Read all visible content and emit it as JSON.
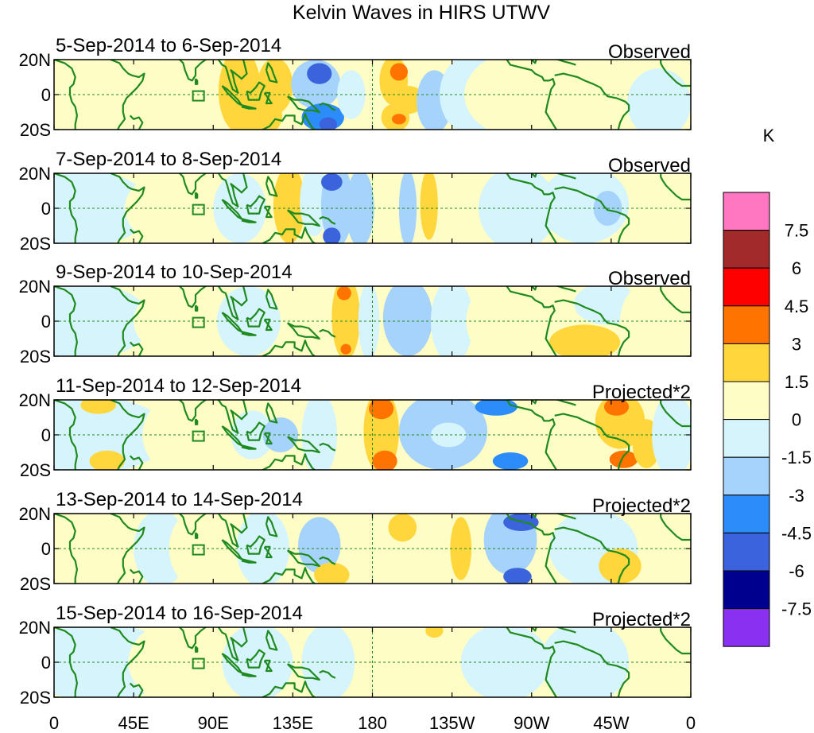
{
  "chart_data": {
    "type": "heatmap",
    "title": "Kelvin Waves in HIRS UTWV",
    "colorbar": {
      "unit": "K",
      "tick_labels": [
        "7.5",
        "6",
        "4.5",
        "3",
        "1.5",
        "0",
        "-1.5",
        "-3",
        "-4.5",
        "-6",
        "-7.5"
      ],
      "colors_top_to_bottom": [
        "#ff77c0",
        "#a32a2a",
        "#ff0000",
        "#ff7300",
        "#ffd63b",
        "#fffdc6",
        "#d6f4fb",
        "#a6d3fc",
        "#2b8cfa",
        "#3b64dc",
        "#00008e",
        "#8a30f0"
      ],
      "levels_top_to_bottom": [
        9,
        7.5,
        6,
        4.5,
        3,
        1.5,
        0,
        -1.5,
        -3,
        -4.5,
        -6,
        -7.5,
        -9
      ]
    },
    "x_tick_labels": [
      "0",
      "45E",
      "90E",
      "135E",
      "180",
      "135W",
      "90W",
      "45W",
      "0"
    ],
    "x_tick_longitudes": [
      0,
      45,
      90,
      135,
      180,
      225,
      270,
      315,
      360
    ],
    "y_tick_labels": [
      "20N",
      "0",
      "20S"
    ],
    "y_tick_latitudes": [
      20,
      0,
      -20
    ],
    "panels": [
      {
        "date_range": "5-Sep-2014 to 6-Sep-2014",
        "label": "Observed",
        "anomalies": [
          {
            "lon": 12,
            "lat": 0,
            "rlon": 40,
            "rlat": 22,
            "value": 0.9
          },
          {
            "lon": 75,
            "lat": 2,
            "rlon": 28,
            "rlat": 20,
            "value": 0.7
          },
          {
            "lon": 105,
            "lat": 2,
            "rlon": 12,
            "rlat": 24,
            "value": 2.0
          },
          {
            "lon": 125,
            "lat": 5,
            "rlon": 10,
            "rlat": 16,
            "value": 2.2
          },
          {
            "lon": 117,
            "lat": -12,
            "rlon": 12,
            "rlat": 12,
            "value": 1.8
          },
          {
            "lon": 148,
            "lat": 6,
            "rlon": 14,
            "rlat": 14,
            "value": -2.0
          },
          {
            "lon": 150,
            "lat": 12,
            "rlon": 7,
            "rlat": 6,
            "value": -4.6
          },
          {
            "lon": 152,
            "lat": -13,
            "rlon": 12,
            "rlat": 8,
            "value": -3.5
          },
          {
            "lon": 155,
            "lat": -17,
            "rlon": 5,
            "rlat": 4,
            "value": -4.6
          },
          {
            "lon": 168,
            "lat": 0,
            "rlon": 8,
            "rlat": 14,
            "value": -1.0
          },
          {
            "lon": 183,
            "lat": 2,
            "rlon": 6,
            "rlat": 24,
            "value": 1.2
          },
          {
            "lon": 192,
            "lat": 8,
            "rlon": 8,
            "rlat": 14,
            "value": 2.2
          },
          {
            "lon": 195,
            "lat": 13,
            "rlon": 5,
            "rlat": 5,
            "value": 3.5
          },
          {
            "lon": 193,
            "lat": -13,
            "rlon": 8,
            "rlat": 8,
            "value": 2.4
          },
          {
            "lon": 195,
            "lat": -14,
            "rlon": 4,
            "rlat": 3,
            "value": 3.5
          },
          {
            "lon": 200,
            "lat": -3,
            "rlon": 10,
            "rlat": 8,
            "value": 1.6
          },
          {
            "lon": 215,
            "lat": -4,
            "rlon": 10,
            "rlat": 18,
            "value": -1.7
          },
          {
            "lon": 238,
            "lat": 0,
            "rlon": 20,
            "rlat": 24,
            "value": -1.0
          },
          {
            "lon": 262,
            "lat": 0,
            "rlon": 30,
            "rlat": 24,
            "value": 0.8
          },
          {
            "lon": 300,
            "lat": 0,
            "rlon": 30,
            "rlat": 24,
            "value": 0.9
          },
          {
            "lon": 342,
            "lat": -5,
            "rlon": 18,
            "rlat": 20,
            "value": -0.8
          }
        ]
      },
      {
        "date_range": "7-Sep-2014 to 8-Sep-2014",
        "label": "Observed",
        "anomalies": [
          {
            "lon": 15,
            "lat": 0,
            "rlon": 40,
            "rlat": 22,
            "value": -0.8
          },
          {
            "lon": 70,
            "lat": 0,
            "rlon": 30,
            "rlat": 22,
            "value": 0.8
          },
          {
            "lon": 105,
            "lat": 0,
            "rlon": 15,
            "rlat": 20,
            "value": -0.9
          },
          {
            "lon": 133,
            "lat": 2,
            "rlon": 9,
            "rlat": 22,
            "value": 2.0
          },
          {
            "lon": 147,
            "lat": 4,
            "rlon": 8,
            "rlat": 20,
            "value": -0.9
          },
          {
            "lon": 160,
            "lat": 2,
            "rlon": 9,
            "rlat": 24,
            "value": -2.0
          },
          {
            "lon": 157,
            "lat": 15,
            "rlon": 6,
            "rlat": 5,
            "value": -4.6
          },
          {
            "lon": 157,
            "lat": -16,
            "rlon": 5,
            "rlat": 5,
            "value": -4.6
          },
          {
            "lon": 173,
            "lat": 0,
            "rlon": 8,
            "rlat": 22,
            "value": -1.8
          },
          {
            "lon": 188,
            "lat": 0,
            "rlon": 6,
            "rlat": 24,
            "value": 0.9
          },
          {
            "lon": 200,
            "lat": 0,
            "rlon": 5,
            "rlat": 22,
            "value": -1.6
          },
          {
            "lon": 212,
            "lat": 2,
            "rlon": 5,
            "rlat": 20,
            "value": 1.7
          },
          {
            "lon": 235,
            "lat": 0,
            "rlon": 12,
            "rlat": 24,
            "value": 0.8
          },
          {
            "lon": 262,
            "lat": 0,
            "rlon": 22,
            "rlat": 24,
            "value": -0.8
          },
          {
            "lon": 300,
            "lat": 2,
            "rlon": 25,
            "rlat": 22,
            "value": -0.9
          },
          {
            "lon": 313,
            "lat": 0,
            "rlon": 8,
            "rlat": 10,
            "value": -1.7
          },
          {
            "lon": 345,
            "lat": 0,
            "rlon": 18,
            "rlat": 24,
            "value": 0.7
          }
        ]
      },
      {
        "date_range": "9-Sep-2014 to 10-Sep-2014",
        "label": "Observed",
        "anomalies": [
          {
            "lon": 15,
            "lat": 0,
            "rlon": 40,
            "rlat": 22,
            "value": -0.8
          },
          {
            "lon": 70,
            "lat": 0,
            "rlon": 25,
            "rlat": 20,
            "value": 0.7
          },
          {
            "lon": 110,
            "lat": 0,
            "rlon": 18,
            "rlat": 20,
            "value": -0.9
          },
          {
            "lon": 143,
            "lat": 0,
            "rlon": 10,
            "rlat": 24,
            "value": 0.9
          },
          {
            "lon": 165,
            "lat": 2,
            "rlon": 8,
            "rlat": 24,
            "value": 2.1
          },
          {
            "lon": 164,
            "lat": 16,
            "rlon": 4,
            "rlat": 4,
            "value": 3.6
          },
          {
            "lon": 165,
            "lat": -16,
            "rlon": 3,
            "rlat": 3,
            "value": 3.6
          },
          {
            "lon": 178,
            "lat": 0,
            "rlon": 6,
            "rlat": 22,
            "value": -0.9
          },
          {
            "lon": 200,
            "lat": 2,
            "rlon": 14,
            "rlat": 22,
            "value": -1.7
          },
          {
            "lon": 225,
            "lat": 0,
            "rlon": 12,
            "rlat": 24,
            "value": -0.8
          },
          {
            "lon": 255,
            "lat": 0,
            "rlon": 22,
            "rlat": 24,
            "value": 0.8
          },
          {
            "lon": 300,
            "lat": -12,
            "rlon": 20,
            "rlat": 10,
            "value": 1.8
          },
          {
            "lon": 312,
            "lat": 10,
            "rlon": 18,
            "rlat": 12,
            "value": -0.9
          },
          {
            "lon": 340,
            "lat": 0,
            "rlon": 20,
            "rlat": 24,
            "value": 0.8
          }
        ]
      },
      {
        "date_range": "11-Sep-2014 to 12-Sep-2014",
        "label": "Projected*2",
        "anomalies": [
          {
            "lon": 20,
            "lat": 0,
            "rlon": 45,
            "rlat": 22,
            "value": -0.8
          },
          {
            "lon": 25,
            "lat": 17,
            "rlon": 10,
            "rlat": 5,
            "value": 1.7
          },
          {
            "lon": 30,
            "lat": -15,
            "rlon": 10,
            "rlat": 6,
            "value": 1.7
          },
          {
            "lon": 75,
            "lat": 0,
            "rlon": 25,
            "rlat": 24,
            "value": 0.8
          },
          {
            "lon": 112,
            "lat": 0,
            "rlon": 12,
            "rlat": 14,
            "value": -1.0
          },
          {
            "lon": 128,
            "lat": 0,
            "rlon": 10,
            "rlat": 10,
            "value": -2.0
          },
          {
            "lon": 150,
            "lat": 0,
            "rlon": 10,
            "rlat": 24,
            "value": -1.0
          },
          {
            "lon": 185,
            "lat": 2,
            "rlon": 10,
            "rlat": 24,
            "value": 2.0
          },
          {
            "lon": 185,
            "lat": 15,
            "rlon": 7,
            "rlat": 6,
            "value": 3.6
          },
          {
            "lon": 187,
            "lat": -15,
            "rlon": 7,
            "rlat": 6,
            "value": 3.6
          },
          {
            "lon": 220,
            "lat": 2,
            "rlon": 25,
            "rlat": 22,
            "value": -1.7
          },
          {
            "lon": 223,
            "lat": 0,
            "rlon": 10,
            "rlat": 7,
            "value": -0.5
          },
          {
            "lon": 250,
            "lat": 16,
            "rlon": 12,
            "rlat": 5,
            "value": -3.5
          },
          {
            "lon": 258,
            "lat": -15,
            "rlon": 10,
            "rlat": 5,
            "value": -3.5
          },
          {
            "lon": 282,
            "lat": 0,
            "rlon": 15,
            "rlat": 24,
            "value": 0.8
          },
          {
            "lon": 320,
            "lat": 8,
            "rlon": 14,
            "rlat": 16,
            "value": 2.0
          },
          {
            "lon": 318,
            "lat": 16,
            "rlon": 7,
            "rlat": 5,
            "value": 3.6
          },
          {
            "lon": 322,
            "lat": -14,
            "rlon": 8,
            "rlat": 5,
            "value": 3.6
          },
          {
            "lon": 335,
            "lat": -5,
            "rlon": 8,
            "rlat": 14,
            "value": 1.8
          },
          {
            "lon": 350,
            "lat": 0,
            "rlon": 12,
            "rlat": 24,
            "value": -0.8
          }
        ]
      },
      {
        "date_range": "13-Sep-2014 to 14-Sep-2014",
        "label": "Projected*2",
        "anomalies": [
          {
            "lon": 20,
            "lat": 0,
            "rlon": 40,
            "rlat": 22,
            "value": 0.8
          },
          {
            "lon": 60,
            "lat": 0,
            "rlon": 15,
            "rlat": 22,
            "value": -0.8
          },
          {
            "lon": 85,
            "lat": 0,
            "rlon": 20,
            "rlat": 24,
            "value": 0.8
          },
          {
            "lon": 118,
            "lat": 0,
            "rlon": 15,
            "rlat": 22,
            "value": -0.9
          },
          {
            "lon": 150,
            "lat": 2,
            "rlon": 12,
            "rlat": 16,
            "value": -1.8
          },
          {
            "lon": 157,
            "lat": -15,
            "rlon": 10,
            "rlat": 7,
            "value": 1.7
          },
          {
            "lon": 190,
            "lat": 0,
            "rlon": 12,
            "rlat": 24,
            "value": 0.8
          },
          {
            "lon": 197,
            "lat": 12,
            "rlon": 8,
            "rlat": 8,
            "value": 1.8
          },
          {
            "lon": 225,
            "lat": 0,
            "rlon": 12,
            "rlat": 24,
            "value": 0.8
          },
          {
            "lon": 230,
            "lat": 0,
            "rlon": 6,
            "rlat": 18,
            "value": 1.8
          },
          {
            "lon": 258,
            "lat": 5,
            "rlon": 15,
            "rlat": 20,
            "value": -1.7
          },
          {
            "lon": 264,
            "lat": 15,
            "rlon": 10,
            "rlat": 5,
            "value": -4.6
          },
          {
            "lon": 262,
            "lat": -16,
            "rlon": 8,
            "rlat": 5,
            "value": -4.6
          },
          {
            "lon": 305,
            "lat": 0,
            "rlon": 25,
            "rlat": 22,
            "value": -0.8
          },
          {
            "lon": 320,
            "lat": -10,
            "rlon": 12,
            "rlat": 10,
            "value": 1.8
          },
          {
            "lon": 350,
            "lat": 0,
            "rlon": 15,
            "rlat": 22,
            "value": 0.8
          }
        ]
      },
      {
        "date_range": "15-Sep-2014 to 16-Sep-2014",
        "label": "Projected*2",
        "anomalies": [
          {
            "lon": 25,
            "lat": 0,
            "rlon": 45,
            "rlat": 22,
            "value": -0.8
          },
          {
            "lon": 72,
            "lat": 0,
            "rlon": 30,
            "rlat": 24,
            "value": 0.7
          },
          {
            "lon": 115,
            "lat": 0,
            "rlon": 20,
            "rlat": 22,
            "value": -0.9
          },
          {
            "lon": 155,
            "lat": 0,
            "rlon": 15,
            "rlat": 22,
            "value": -0.9
          },
          {
            "lon": 188,
            "lat": 0,
            "rlon": 12,
            "rlat": 24,
            "value": 0.8
          },
          {
            "lon": 215,
            "lat": 18,
            "rlon": 5,
            "rlat": 4,
            "value": 1.7
          },
          {
            "lon": 255,
            "lat": 0,
            "rlon": 25,
            "rlat": 22,
            "value": -0.8
          },
          {
            "lon": 300,
            "lat": 0,
            "rlon": 25,
            "rlat": 24,
            "value": -0.8
          },
          {
            "lon": 348,
            "lat": 0,
            "rlon": 15,
            "rlat": 22,
            "value": 0.7
          }
        ]
      }
    ]
  }
}
